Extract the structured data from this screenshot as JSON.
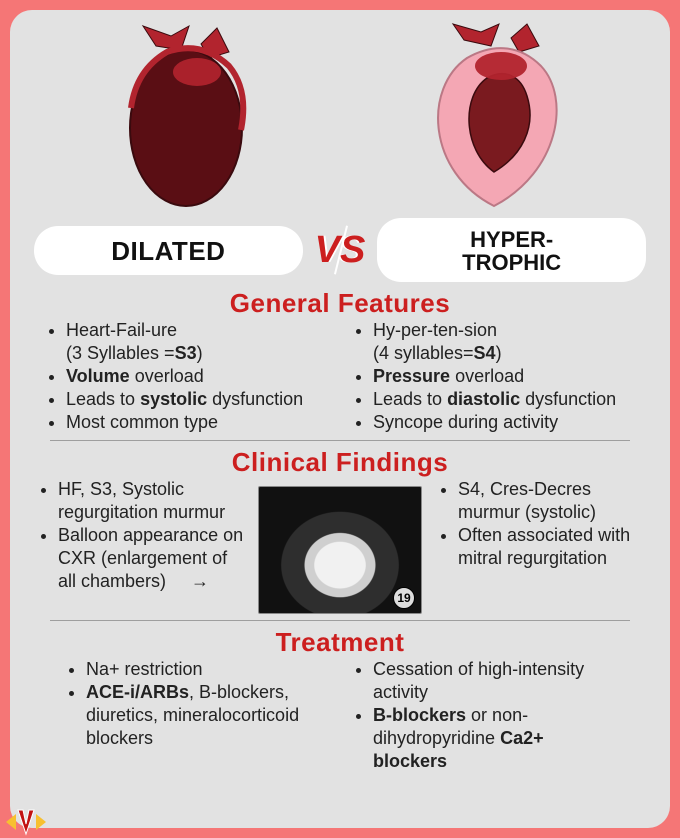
{
  "colors": {
    "page_bg": "#f57676",
    "card_bg": "#e2e2e2",
    "pill_bg": "#ffffff",
    "accent_red": "#cc1f1f",
    "text": "#222222",
    "divider": "#9e9e9e",
    "heart_dilated_fill": "#5a0e14",
    "heart_dilated_stroke": "#b2242e",
    "heart_hyper_wall": "#f4a7b4",
    "heart_hyper_cavity": "#7a1a1f",
    "heart_top_red": "#b2242e"
  },
  "badge": {
    "left": "DILATED",
    "right": "HYPER-\nTROPHIC",
    "vs_v": "V",
    "vs_s": "S"
  },
  "sections": {
    "general": {
      "title": "General Features",
      "left": [
        "Heart-Fail-ure<br>(3 Syllables =<b>S3</b>)",
        "<b>Volume</b> overload",
        "Leads to <b>systolic</b> dysfunction",
        "Most common type"
      ],
      "right": [
        "Hy-per-ten-sion<br>(4 syllables=<b>S4</b>)",
        "<b>Pressure</b> overload",
        "Leads to <b>diastolic</b> dysfunction",
        "Syncope during activity"
      ]
    },
    "clinical": {
      "title": "Clinical Findings",
      "left": [
        "HF, S3, Systolic regurgitation murmur",
        "Balloon appearance on CXR (enlargement of all chambers) &nbsp;&nbsp;&nbsp;&nbsp;→"
      ],
      "right": [
        "S4, Cres-Decres murmur (systolic)",
        "Often associated with mitral regurgitation"
      ],
      "cxr_badge": "19"
    },
    "treatment": {
      "title": "Treatment",
      "left": [
        "Na+ restriction",
        "<b>ACE-i/ARBs</b>, B-blockers, diuretics, mineralocorticoid blockers"
      ],
      "right": [
        "Cessation of high-intensity activity",
        "<b>B-blockers</b> or non-dihydropyridine <b>Ca2+ blockers</b>"
      ]
    }
  }
}
